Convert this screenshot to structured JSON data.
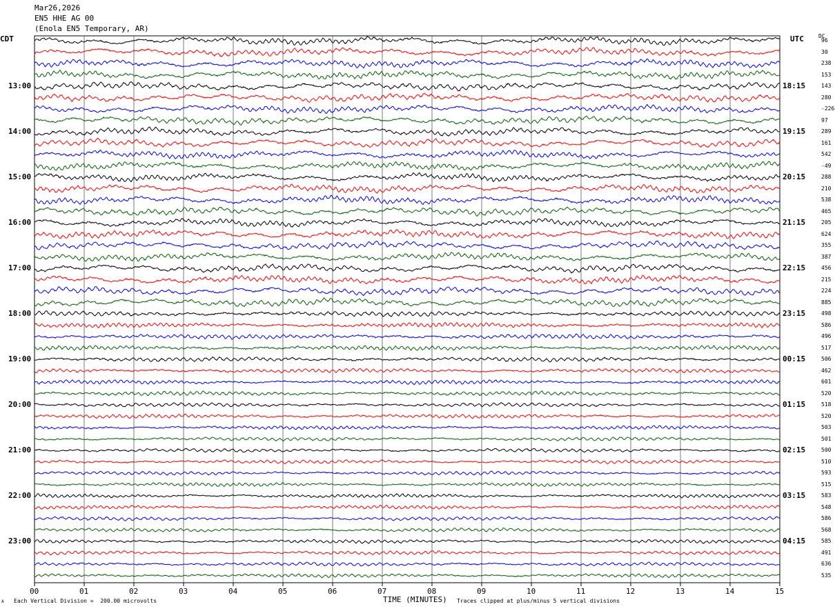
{
  "header": {
    "date": "Mar26,2026",
    "station": "EN5 HHE AG 00",
    "location": "(Enola EN5 Temporary, AR)"
  },
  "left_tz": "CDT",
  "right_tz": "UTC",
  "dc_label": "DC",
  "footer": {
    "scale_note": "Each Vertical Division =  200.00 microvolts",
    "clip_note": "Traces clipped at plus/minus 5 vertical divisions",
    "corner_mark": "A"
  },
  "colors": {
    "trace_cycle": [
      "#000000",
      "#ff0000",
      "#0000ff",
      "#006400"
    ],
    "grid": "#000000"
  },
  "chart_data": {
    "type": "line",
    "title": "",
    "xlabel": "TIME (MINUTES)",
    "xlim": [
      0,
      15
    ],
    "x_ticks": [
      "00",
      "01",
      "02",
      "03",
      "04",
      "05",
      "06",
      "07",
      "08",
      "09",
      "10",
      "11",
      "12",
      "13",
      "14",
      "15"
    ],
    "trace_count": 48,
    "left_time_labels": [
      {
        "trace": 4,
        "label": "13:00"
      },
      {
        "trace": 8,
        "label": "14:00"
      },
      {
        "trace": 12,
        "label": "15:00"
      },
      {
        "trace": 16,
        "label": "16:00"
      },
      {
        "trace": 20,
        "label": "17:00"
      },
      {
        "trace": 24,
        "label": "18:00"
      },
      {
        "trace": 28,
        "label": "19:00"
      },
      {
        "trace": 32,
        "label": "20:00"
      },
      {
        "trace": 36,
        "label": "21:00"
      },
      {
        "trace": 40,
        "label": "22:00"
      },
      {
        "trace": 44,
        "label": "23:00"
      }
    ],
    "right_time_labels": [
      {
        "trace": 4,
        "label": "18:15"
      },
      {
        "trace": 8,
        "label": "19:15"
      },
      {
        "trace": 12,
        "label": "20:15"
      },
      {
        "trace": 16,
        "label": "21:15"
      },
      {
        "trace": 20,
        "label": "22:15"
      },
      {
        "trace": 24,
        "label": "23:15"
      },
      {
        "trace": 28,
        "label": "00:15"
      },
      {
        "trace": 32,
        "label": "01:15"
      },
      {
        "trace": 36,
        "label": "02:15"
      },
      {
        "trace": 40,
        "label": "03:15"
      },
      {
        "trace": 44,
        "label": "04:15"
      }
    ],
    "dc_offsets": [
      "96",
      "30",
      "238",
      "153",
      "143",
      "280",
      "-226",
      "97",
      "289",
      "161",
      "542",
      "-49",
      "288",
      "210",
      "538",
      "465",
      "205",
      "624",
      "355",
      "387",
      "456",
      "215",
      "224",
      "885",
      "498",
      "586",
      "496",
      "517",
      "506",
      "462",
      "601",
      "520",
      "518",
      "520",
      "503",
      "501",
      "500",
      "510",
      "593",
      "515",
      "583",
      "548",
      "586",
      "568",
      "585",
      "491",
      "636",
      "535"
    ],
    "activity": [
      1,
      1,
      1,
      1,
      1,
      1,
      1,
      1,
      1,
      1,
      1,
      1,
      1,
      1,
      1,
      1,
      1,
      1,
      1,
      1,
      1,
      1,
      1,
      1,
      0.95,
      0.9,
      0.9,
      0.85,
      0.85,
      0.8,
      0.8,
      0.8,
      0.75,
      0.75,
      0.7,
      0.7,
      0.7,
      0.7,
      0.7,
      0.7,
      0.7,
      0.7,
      0.7,
      0.7,
      0.7,
      0.7,
      0.7,
      0.7
    ]
  }
}
